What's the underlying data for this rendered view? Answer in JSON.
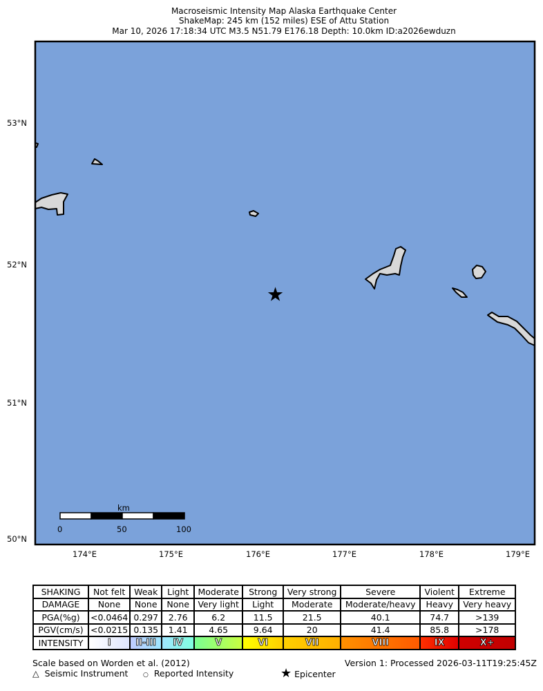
{
  "header": {
    "line1": "Macroseismic Intensity Map Alaska Earthquake Center",
    "line2": "ShakeMap: 245 km (152 miles) ESE of Attu Station",
    "line3": "Mar 10, 2026 17:18:34 UTC M3.5 N51.79 E176.18 Depth: 10.0km ID:a2026ewduzn"
  },
  "map": {
    "ocean_color": "#7ba2da",
    "land_color": "#d8d8d8",
    "lat_labels": [
      "53°N",
      "52°N",
      "51°N",
      "50°N"
    ],
    "lon_labels": [
      "174°E",
      "175°E",
      "176°E",
      "177°E",
      "178°E",
      "179°E"
    ],
    "epicenter": {
      "lat": 51.79,
      "lon": 176.18,
      "icon": "star-icon"
    },
    "scale_bar": {
      "unit": "km",
      "labels": [
        "0",
        "50",
        "100"
      ]
    }
  },
  "legend": {
    "rows": [
      {
        "header": "SHAKING",
        "cells": [
          "Not felt",
          "Weak",
          "Light",
          "Moderate",
          "Strong",
          "Very strong",
          "Severe",
          "Violent",
          "Extreme"
        ]
      },
      {
        "header": "DAMAGE",
        "cells": [
          "None",
          "None",
          "None",
          "Very light",
          "Light",
          "Moderate",
          "Moderate/heavy",
          "Heavy",
          "Very heavy"
        ]
      },
      {
        "header": "PGA(%g)",
        "cells": [
          "<0.0464",
          "0.297",
          "2.76",
          "6.2",
          "11.5",
          "21.5",
          "40.1",
          "74.7",
          ">139"
        ]
      },
      {
        "header": "PGV(cm/s)",
        "cells": [
          "<0.0215",
          "0.135",
          "1.41",
          "4.65",
          "9.64",
          "20",
          "41.4",
          "85.8",
          ">178"
        ]
      }
    ],
    "intensity": {
      "header": "INTENSITY",
      "cells": [
        "I",
        "II-III",
        "IV",
        "V",
        "VI",
        "VII",
        "VIII",
        "IX",
        "X+"
      ],
      "colors": [
        "linear-gradient(90deg,#fff,#dfe6fe)",
        "linear-gradient(90deg,#bfccff,#a0e6ff)",
        "linear-gradient(90deg,#a0e6ff,#80ffdf)",
        "linear-gradient(90deg,#7aff93,#c8ff40)",
        "linear-gradient(90deg,#ffff00,#ffd000)",
        "linear-gradient(90deg,#ffd000,#ffb000)",
        "linear-gradient(90deg,#ff9100,#ff5a00)",
        "linear-gradient(90deg,#ff3000,#e00000)",
        "linear-gradient(90deg,#d00000,#c00000)"
      ]
    },
    "scale_note": "Scale based on Worden et al. (2012)",
    "version": "Version 1: Processed 2026-03-11T19:25:45Z",
    "symbols": {
      "instrument": "Seismic Instrument",
      "reported": "Reported Intensity",
      "epicenter": "Epicenter"
    }
  }
}
